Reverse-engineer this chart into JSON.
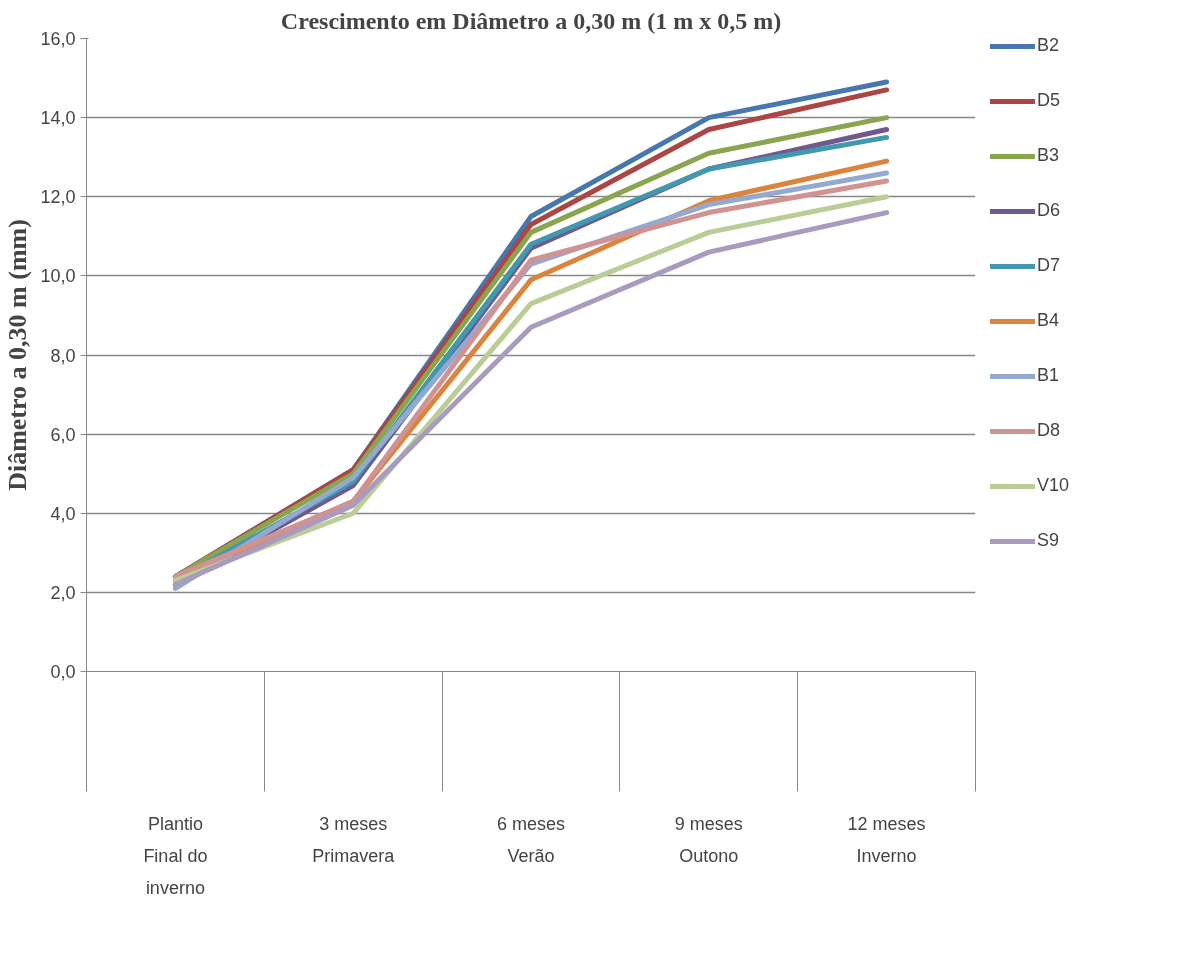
{
  "chart_data": {
    "type": "line",
    "title": "Crescimento em Diâmetro a 0,30 m (1 m x 0,5 m)",
    "ylabel": "Diâmetro a 0,30 m (mm)",
    "categories": [
      "Plantio\nFinal do\ninverno",
      "3 meses\nPrimavera",
      "6 meses\nVerão",
      "9 meses\nOutono",
      "12 meses\nInverno"
    ],
    "ylim": [
      0,
      16
    ],
    "yticks": [
      {
        "value": 0,
        "label": "0,0"
      },
      {
        "value": 2,
        "label": "2,0"
      },
      {
        "value": 4,
        "label": "4,0"
      },
      {
        "value": 6,
        "label": "6,0"
      },
      {
        "value": 8,
        "label": "8,0"
      },
      {
        "value": 10,
        "label": "10,0"
      },
      {
        "value": 12,
        "label": "12,0"
      },
      {
        "value": 14,
        "label": "14,0"
      },
      {
        "value": 16,
        "label": "16,0"
      }
    ],
    "grid": "y",
    "legend": "right",
    "marker": "none",
    "line_style": "solid",
    "series": [
      {
        "name": "B2",
        "color": "#4677ae",
        "values": [
          2.4,
          5.1,
          11.5,
          14.0,
          14.9
        ]
      },
      {
        "name": "D5",
        "color": "#aa4643",
        "values": [
          2.4,
          5.1,
          11.3,
          13.7,
          14.7
        ]
      },
      {
        "name": "B3",
        "color": "#89a54e",
        "values": [
          2.4,
          5.0,
          11.1,
          13.1,
          14.0
        ]
      },
      {
        "name": "D6",
        "color": "#71588f",
        "values": [
          2.2,
          4.7,
          10.7,
          12.7,
          13.7
        ]
      },
      {
        "name": "D7",
        "color": "#4198af",
        "values": [
          2.3,
          4.8,
          10.8,
          12.7,
          13.5
        ]
      },
      {
        "name": "B4",
        "color": "#db843d",
        "values": [
          2.3,
          4.3,
          9.9,
          11.9,
          12.9
        ]
      },
      {
        "name": "B1",
        "color": "#93a9cf",
        "values": [
          2.1,
          4.9,
          10.3,
          11.8,
          12.6
        ]
      },
      {
        "name": "D8",
        "color": "#d19392",
        "values": [
          2.4,
          4.3,
          10.4,
          11.6,
          12.4
        ]
      },
      {
        "name": "V10",
        "color": "#b9cd96",
        "values": [
          2.3,
          4.0,
          9.3,
          11.1,
          12.0
        ]
      },
      {
        "name": "S9",
        "color": "#a99bbd",
        "values": [
          2.2,
          4.2,
          8.7,
          10.6,
          11.6
        ]
      }
    ]
  }
}
